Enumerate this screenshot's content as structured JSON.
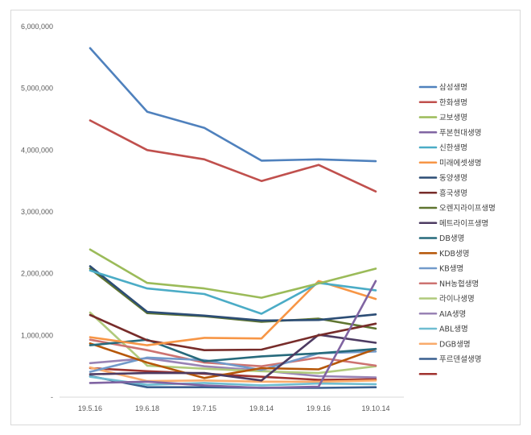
{
  "chart_data": {
    "type": "line",
    "title": "",
    "xlabel": "",
    "ylabel": "",
    "ylim": [
      0,
      6000000
    ],
    "yticks": [
      "-",
      "1,000,000",
      "2,000,000",
      "3,000,000",
      "4,000,000",
      "5,000,000",
      "6,000,000"
    ],
    "ytick_values": [
      0,
      1000000,
      2000000,
      3000000,
      4000000,
      5000000,
      6000000
    ],
    "categories": [
      "19.5.16",
      "19.6.18",
      "19.7.15",
      "19.8.14",
      "19.9.16",
      "19.10.14"
    ],
    "grid": false,
    "legend_position": "right",
    "series": [
      {
        "name": "삼성생명",
        "color": "#4f81bd",
        "values": [
          5650000,
          4620000,
          4360000,
          3830000,
          3850000,
          3820000
        ]
      },
      {
        "name": "한화생명",
        "color": "#c0504d",
        "values": [
          4480000,
          4000000,
          3850000,
          3500000,
          3760000,
          3330000
        ]
      },
      {
        "name": "교보생명",
        "color": "#9bbb59",
        "values": [
          2390000,
          1850000,
          1760000,
          1610000,
          1840000,
          2080000
        ]
      },
      {
        "name": "푸본현대생명",
        "color": "#8064a2",
        "values": [
          230000,
          250000,
          190000,
          150000,
          170000,
          1880000
        ]
      },
      {
        "name": "신한생명",
        "color": "#4bacc6",
        "values": [
          2050000,
          1760000,
          1670000,
          1350000,
          1850000,
          1730000
        ]
      },
      {
        "name": "미래에셋생명",
        "color": "#f79646",
        "values": [
          970000,
          840000,
          960000,
          950000,
          1880000,
          1590000
        ]
      },
      {
        "name": "동양생명",
        "color": "#2c4d75",
        "values": [
          2120000,
          1380000,
          1320000,
          1240000,
          1250000,
          1340000
        ]
      },
      {
        "name": "흥국생명",
        "color": "#772c2a",
        "values": [
          1330000,
          920000,
          760000,
          770000,
          1000000,
          1190000
        ]
      },
      {
        "name": "오렌지라이프생명",
        "color": "#5f7530",
        "values": [
          2080000,
          1360000,
          1310000,
          1220000,
          1270000,
          1110000
        ]
      },
      {
        "name": "메트라이프생명",
        "color": "#4d3b62",
        "values": [
          370000,
          390000,
          390000,
          270000,
          1010000,
          880000
        ]
      },
      {
        "name": "DB생명",
        "color": "#276a7c",
        "values": [
          840000,
          930000,
          580000,
          660000,
          710000,
          780000
        ]
      },
      {
        "name": "KDB생명",
        "color": "#b65708",
        "values": [
          870000,
          560000,
          310000,
          470000,
          450000,
          780000
        ]
      },
      {
        "name": "KB생명",
        "color": "#729aca",
        "values": [
          410000,
          640000,
          600000,
          440000,
          710000,
          740000
        ]
      },
      {
        "name": "NH농협생명",
        "color": "#cd7371",
        "values": [
          930000,
          760000,
          560000,
          500000,
          640000,
          510000
        ]
      },
      {
        "name": "라이나생명",
        "color": "#b0ca7c",
        "values": [
          1370000,
          510000,
          460000,
          420000,
          390000,
          500000
        ]
      },
      {
        "name": "AIA생명",
        "color": "#9983b5",
        "values": [
          550000,
          630000,
          500000,
          430000,
          340000,
          320000
        ]
      },
      {
        "name": "ABL생명",
        "color": "#6fbdd1",
        "values": [
          330000,
          200000,
          230000,
          190000,
          220000,
          210000
        ]
      },
      {
        "name": "DGB생명",
        "color": "#f9ab6b",
        "values": [
          480000,
          260000,
          270000,
          250000,
          250000,
          270000
        ]
      },
      {
        "name": "푸르덴셜생명",
        "color": "#3a5f8f",
        "values": [
          340000,
          160000,
          160000,
          150000,
          150000,
          160000
        ]
      },
      {
        "name": "",
        "color": "#a0332f",
        "values": [
          470000,
          420000,
          380000,
          330000,
          280000,
          290000
        ]
      }
    ]
  }
}
